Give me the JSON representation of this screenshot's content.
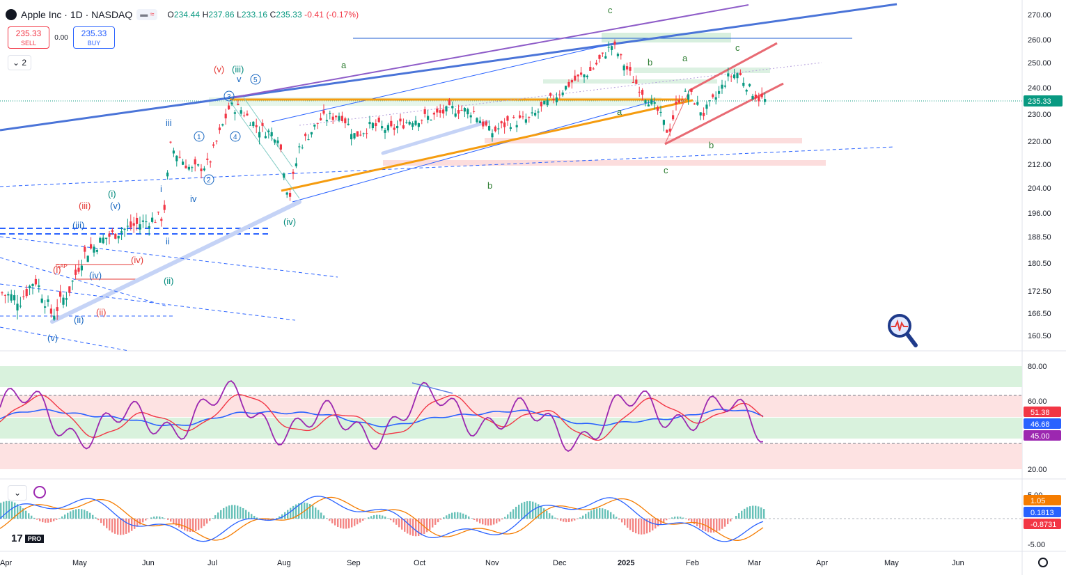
{
  "header": {
    "symbol_title": "Apple Inc · 1D · NASDAQ",
    "badge": "≈",
    "ohlc": {
      "o_label": "O",
      "o": "234.44",
      "h_label": "H",
      "h": "237.86",
      "l_label": "L",
      "l": "233.16",
      "c_label": "C",
      "c": "235.33",
      "change": "-0.41 (-0.17%)"
    }
  },
  "trade": {
    "sell_price": "235.33",
    "sell_label": "SELL",
    "spread": "0.00",
    "buy_price": "235.33",
    "buy_label": "BUY"
  },
  "collapse_label": "2",
  "branding": {
    "logo": "17",
    "pro": "PRO"
  },
  "colors": {
    "up": "#089981",
    "down": "#f23645",
    "rsi": "#9c27b0",
    "ma_red": "#f23645",
    "ma_blue": "#2962ff",
    "trend_orange": "#f59c0f",
    "trend_blue": "#5b7fe0"
  },
  "price_axis": {
    "labels": [
      "270.00",
      "260.00",
      "250.00",
      "240.00",
      "230.00",
      "220.00",
      "212.00",
      "204.00",
      "196.00",
      "188.50",
      "180.50",
      "172.50",
      "166.50",
      "160.50"
    ],
    "last_price": "235.33"
  },
  "rsi_axis": {
    "labels": [
      "80.00",
      "60.00",
      "20.00"
    ],
    "badges": [
      "51.38",
      "46.68",
      "45.00"
    ]
  },
  "macd_axis": {
    "labels": [
      "5.00",
      "-5.00"
    ],
    "badges": [
      "1.05",
      "0.1813",
      "-0.8731"
    ]
  },
  "time_axis": {
    "labels": [
      "Apr",
      "May",
      "Jun",
      "Jul",
      "Aug",
      "Sep",
      "Oct",
      "Nov",
      "Dec",
      "2025",
      "Feb",
      "Mar",
      "Apr",
      "May",
      "Jun"
    ]
  },
  "wave_labels": [
    {
      "text": "c",
      "color": "#2e7d32"
    },
    {
      "text": "(v)",
      "color": "#e53935"
    },
    {
      "text": "(iii)",
      "color": "#00897b"
    },
    {
      "text": "v",
      "color": "#1565c0"
    },
    {
      "text": "5",
      "color": "#1565c0"
    },
    {
      "text": "3",
      "color": "#1565c0"
    },
    {
      "text": "a",
      "color": "#2e7d32"
    },
    {
      "text": "b",
      "color": "#2e7d32"
    },
    {
      "text": "a",
      "color": "#2e7d32"
    },
    {
      "text": "c",
      "color": "#2e7d32"
    },
    {
      "text": "iii",
      "color": "#1565c0"
    },
    {
      "text": "1",
      "color": "#1565c0"
    },
    {
      "text": "4",
      "color": "#1565c0"
    },
    {
      "text": "a",
      "color": "#2e7d32"
    },
    {
      "text": "b",
      "color": "#2e7d32"
    },
    {
      "text": "2",
      "color": "#1565c0"
    },
    {
      "text": "i",
      "color": "#1565c0"
    },
    {
      "text": "iv",
      "color": "#1565c0"
    },
    {
      "text": "c",
      "color": "#2e7d32"
    },
    {
      "text": "b",
      "color": "#2e7d32"
    },
    {
      "text": "(i)",
      "color": "#00897b"
    },
    {
      "text": "(iii)",
      "color": "#e53935"
    },
    {
      "text": "(v)",
      "color": "#1565c0"
    },
    {
      "text": "(iv)",
      "color": "#00897b"
    },
    {
      "text": "(iii)",
      "color": "#1565c0"
    },
    {
      "text": "ii",
      "color": "#1565c0"
    },
    {
      "text": "(iv)",
      "color": "#e53935"
    },
    {
      "text": "(i)",
      "color": "#e53935"
    },
    {
      "text": "(iv)",
      "color": "#1565c0"
    },
    {
      "text": "(ii)",
      "color": "#00897b"
    },
    {
      "text": "(ii)",
      "color": "#e53935"
    },
    {
      "text": "(ii)",
      "color": "#1565c0"
    },
    {
      "text": "(v)",
      "color": "#1565c0"
    },
    {
      "text": "GAP",
      "color": "#e53935"
    }
  ]
}
